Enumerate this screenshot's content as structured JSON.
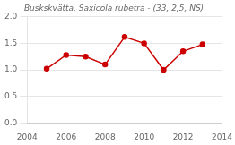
{
  "chart_data": {
    "type": "line",
    "title": "Buskskvätta, Saxicola rubetra - (33, 2,5, NS)",
    "x": [
      2005,
      2006,
      2007,
      2008,
      2009,
      2010,
      2011,
      2012,
      2013
    ],
    "values": [
      1.02,
      1.28,
      1.25,
      1.1,
      1.62,
      1.5,
      1.0,
      1.35,
      1.48
    ],
    "color": "#cc0000",
    "marker": "circle",
    "xlim": [
      2004,
      2014
    ],
    "ylim": [
      0.0,
      2.0
    ],
    "xticks": [
      2004,
      2006,
      2008,
      2010,
      2012,
      2014
    ],
    "yticks": [
      {
        "value": 0,
        "label": "0.0"
      },
      0.5,
      {
        "value": 1,
        "label": "1.0"
      },
      1.5,
      {
        "value": 2,
        "label": "2.0"
      }
    ],
    "grid": "y"
  }
}
